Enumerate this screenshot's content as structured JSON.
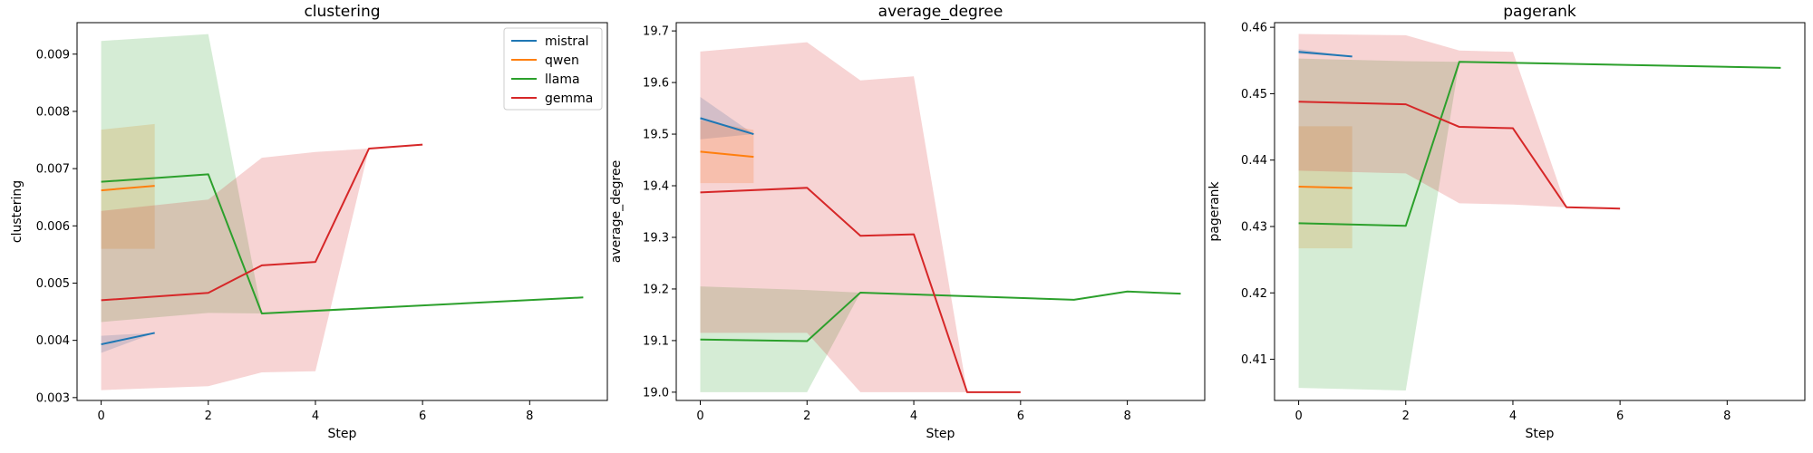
{
  "chart_data": [
    {
      "type": "line",
      "title": "clustering",
      "xlabel": "Step",
      "ylabel": "clustering",
      "xlim": [
        -0.45,
        9.45
      ],
      "ylim": [
        0.00295,
        0.00955
      ],
      "xticks": [
        0,
        2,
        4,
        6,
        8
      ],
      "yticks": [
        0.003,
        0.004,
        0.005,
        0.006,
        0.007,
        0.008,
        0.009
      ],
      "ytick_labels": [
        "0.003",
        "0.004",
        "0.005",
        "0.006",
        "0.007",
        "0.008",
        "0.009"
      ],
      "legend": {
        "position": "upper-right"
      },
      "series": [
        {
          "name": "mistral",
          "color": "#1f77b4",
          "x": [
            0,
            1
          ],
          "y": [
            0.00393,
            0.00413
          ],
          "lower": [
            0.00378,
            0.00413
          ],
          "upper": [
            0.00408,
            0.00413
          ]
        },
        {
          "name": "qwen",
          "color": "#ff7f0e",
          "x": [
            0,
            1
          ],
          "y": [
            0.00662,
            0.0067
          ],
          "lower": [
            0.0056,
            0.0056
          ],
          "upper": [
            0.00768,
            0.00778
          ]
        },
        {
          "name": "llama",
          "color": "#2ca02c",
          "x": [
            0,
            2,
            3,
            9
          ],
          "y": [
            0.00677,
            0.0069,
            0.00447,
            0.00475
          ],
          "lower": [
            0.00432,
            0.00448,
            0.00447,
            0.00475
          ],
          "upper": [
            0.00923,
            0.00935,
            0.00447,
            0.00475
          ]
        },
        {
          "name": "gemma",
          "color": "#d62728",
          "x": [
            0,
            2,
            3,
            4,
            5,
            6
          ],
          "y": [
            0.0047,
            0.00483,
            0.00531,
            0.00537,
            0.00735,
            0.00742
          ],
          "lower": [
            0.00313,
            0.0032,
            0.00344,
            0.00346,
            0.00735,
            0.00742
          ],
          "upper": [
            0.00626,
            0.00646,
            0.00719,
            0.00729,
            0.00735,
            0.00742
          ]
        }
      ]
    },
    {
      "type": "line",
      "title": "average_degree",
      "xlabel": "Step",
      "ylabel": "average_degree",
      "xlim": [
        -0.45,
        9.45
      ],
      "ylim": [
        18.984,
        19.716
      ],
      "xticks": [
        0,
        2,
        4,
        6,
        8
      ],
      "yticks": [
        19.0,
        19.1,
        19.2,
        19.3,
        19.4,
        19.5,
        19.6,
        19.7
      ],
      "ytick_labels": [
        "19.0",
        "19.1",
        "19.2",
        "19.3",
        "19.4",
        "19.5",
        "19.6",
        "19.7"
      ],
      "series": [
        {
          "name": "mistral",
          "color": "#1f77b4",
          "x": [
            0,
            1
          ],
          "y": [
            19.531,
            19.5
          ],
          "lower": [
            19.49,
            19.5
          ],
          "upper": [
            19.572,
            19.5
          ]
        },
        {
          "name": "qwen",
          "color": "#ff7f0e",
          "x": [
            0,
            1
          ],
          "y": [
            19.466,
            19.456
          ],
          "lower": [
            19.405,
            19.405
          ],
          "upper": [
            19.527,
            19.508
          ]
        },
        {
          "name": "llama",
          "color": "#2ca02c",
          "x": [
            0,
            2,
            3,
            7,
            8,
            9
          ],
          "y": [
            19.102,
            19.099,
            19.193,
            19.179,
            19.195,
            19.191
          ],
          "lower": [
            19.0,
            19.0,
            19.193,
            19.179,
            19.195,
            19.191
          ],
          "upper": [
            19.205,
            19.198,
            19.193,
            19.179,
            19.195,
            19.191
          ]
        },
        {
          "name": "gemma",
          "color": "#d62728",
          "x": [
            0,
            2,
            3,
            4,
            5,
            6
          ],
          "y": [
            19.387,
            19.396,
            19.303,
            19.306,
            19.0,
            19.0
          ],
          "lower": [
            19.115,
            19.115,
            19.0,
            19.0,
            19.0,
            19.0
          ],
          "upper": [
            19.66,
            19.678,
            19.604,
            19.612,
            19.0,
            19.0
          ]
        }
      ]
    },
    {
      "type": "line",
      "title": "pagerank",
      "xlabel": "Step",
      "ylabel": "pagerank",
      "xlim": [
        -0.45,
        9.45
      ],
      "ylim": [
        0.4038,
        0.4607
      ],
      "xticks": [
        0,
        2,
        4,
        6,
        8
      ],
      "yticks": [
        0.41,
        0.42,
        0.43,
        0.44,
        0.45,
        0.46
      ],
      "ytick_labels": [
        "0.41",
        "0.42",
        "0.43",
        "0.44",
        "0.45",
        "0.46"
      ],
      "series": [
        {
          "name": "mistral",
          "color": "#1f77b4",
          "x": [
            0,
            1
          ],
          "y": [
            0.4563,
            0.4556
          ],
          "lower": [
            0.456,
            0.4556
          ],
          "upper": [
            0.4567,
            0.4556
          ]
        },
        {
          "name": "qwen",
          "color": "#ff7f0e",
          "x": [
            0,
            1
          ],
          "y": [
            0.436,
            0.4358
          ],
          "lower": [
            0.4267,
            0.4267
          ],
          "upper": [
            0.4451,
            0.4451
          ]
        },
        {
          "name": "llama",
          "color": "#2ca02c",
          "x": [
            0,
            2,
            3,
            9
          ],
          "y": [
            0.4305,
            0.4301,
            0.4548,
            0.4539
          ],
          "lower": [
            0.4057,
            0.4053,
            0.4548,
            0.4539
          ],
          "upper": [
            0.4553,
            0.4549,
            0.4548,
            0.4539
          ]
        },
        {
          "name": "gemma",
          "color": "#d62728",
          "x": [
            0,
            2,
            3,
            4,
            5,
            6
          ],
          "y": [
            0.4488,
            0.4484,
            0.445,
            0.4448,
            0.4329,
            0.4327
          ],
          "lower": [
            0.4384,
            0.438,
            0.4335,
            0.4333,
            0.4329,
            0.4327
          ],
          "upper": [
            0.459,
            0.4588,
            0.4565,
            0.4563,
            0.4329,
            0.4327
          ]
        }
      ]
    }
  ]
}
